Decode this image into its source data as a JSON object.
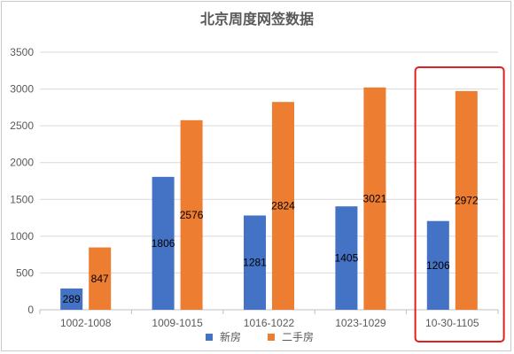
{
  "chart_data": {
    "type": "bar",
    "title": "北京周度网签数据",
    "categories": [
      "1002-1008",
      "1009-1015",
      "1016-1022",
      "1023-1029",
      "10-30-1105"
    ],
    "series": [
      {
        "name": "新房",
        "values": [
          289,
          1806,
          1281,
          1405,
          1206
        ],
        "color": "#4472c4"
      },
      {
        "name": "二手房",
        "values": [
          847,
          2576,
          2824,
          3021,
          2972
        ],
        "color": "#ed7d31"
      }
    ],
    "y_ticks": [
      "0",
      "500",
      "1000",
      "1500",
      "2000",
      "2500",
      "3000",
      "3500"
    ],
    "ylim": [
      0,
      3500
    ],
    "grid": true,
    "legend_position": "bottom",
    "highlight": {
      "category": "10-30-1105",
      "color": "#e02020"
    }
  }
}
